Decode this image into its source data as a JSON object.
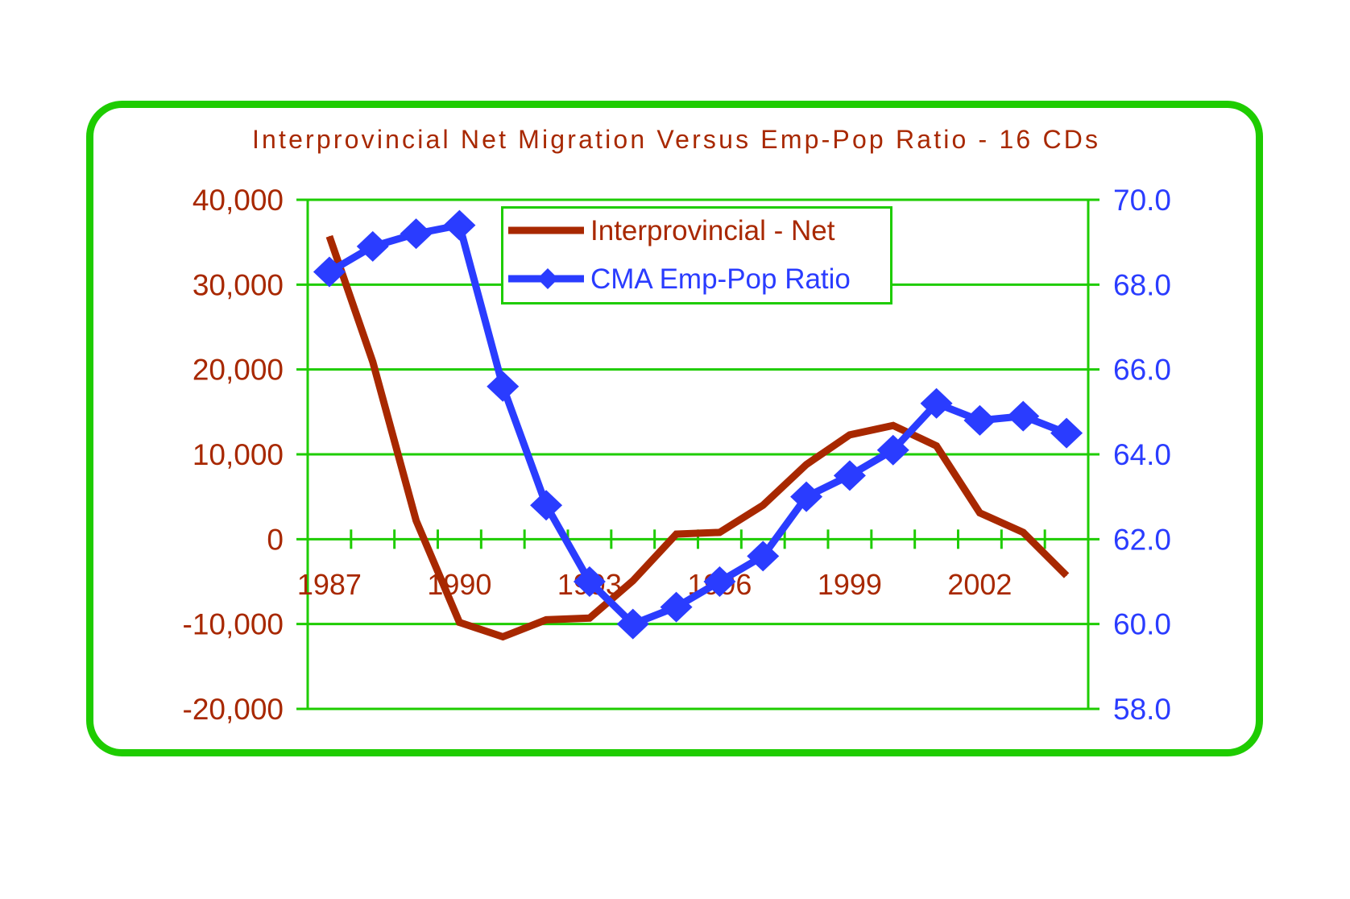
{
  "chart_data": {
    "type": "line",
    "title": "Interprovincial Net Migration Versus Emp-Pop Ratio - 16 CDs",
    "x": [
      1987,
      1988,
      1989,
      1990,
      1991,
      1992,
      1993,
      1994,
      1995,
      1996,
      1997,
      1998,
      1999,
      2000,
      2001,
      2002,
      2003,
      2004
    ],
    "x_tick_labels": [
      "1987",
      "1990",
      "1993",
      "1996",
      "1999",
      "2002"
    ],
    "xlabel": "",
    "ylabel_left": "",
    "ylabel_right": "",
    "ylim_left": [
      -20000,
      40000
    ],
    "ylim_right": [
      58.0,
      70.0
    ],
    "y_tick_labels_left": [
      "40,000",
      "30,000",
      "20,000",
      "10,000",
      "0",
      "-10,000",
      "-20,000"
    ],
    "y_tick_values_left": [
      40000,
      30000,
      20000,
      10000,
      0,
      -10000,
      -20000
    ],
    "y_tick_labels_right": [
      "70.0",
      "68.0",
      "66.0",
      "64.0",
      "62.0",
      "60.0",
      "58.0"
    ],
    "y_tick_values_right": [
      70,
      68,
      66,
      64,
      62,
      60,
      58
    ],
    "grid": true,
    "legend_position": "top-center",
    "series": [
      {
        "name": "Interprovincial - Net",
        "axis": "left",
        "color": "#A82800",
        "marker": "none",
        "values": [
          35700,
          20900,
          2200,
          -9800,
          -11500,
          -9500,
          -9300,
          -4900,
          600,
          800,
          4000,
          8800,
          12300,
          13400,
          11000,
          3100,
          800,
          -4300
        ]
      },
      {
        "name": "CMA Emp-Pop Ratio",
        "axis": "right",
        "color": "#2A3CFF",
        "marker": "diamond",
        "values": [
          68.3,
          68.9,
          69.2,
          69.4,
          65.6,
          62.8,
          61.0,
          60.0,
          60.4,
          61.0,
          61.6,
          63.0,
          63.5,
          64.1,
          65.2,
          64.8,
          64.9,
          64.5
        ]
      }
    ],
    "colors": {
      "frame": "#1ECC00",
      "grid": "#1ECC00",
      "left_axis_text": "#A82800",
      "right_axis_text": "#2A3CFF",
      "title_text": "#A82800"
    }
  }
}
